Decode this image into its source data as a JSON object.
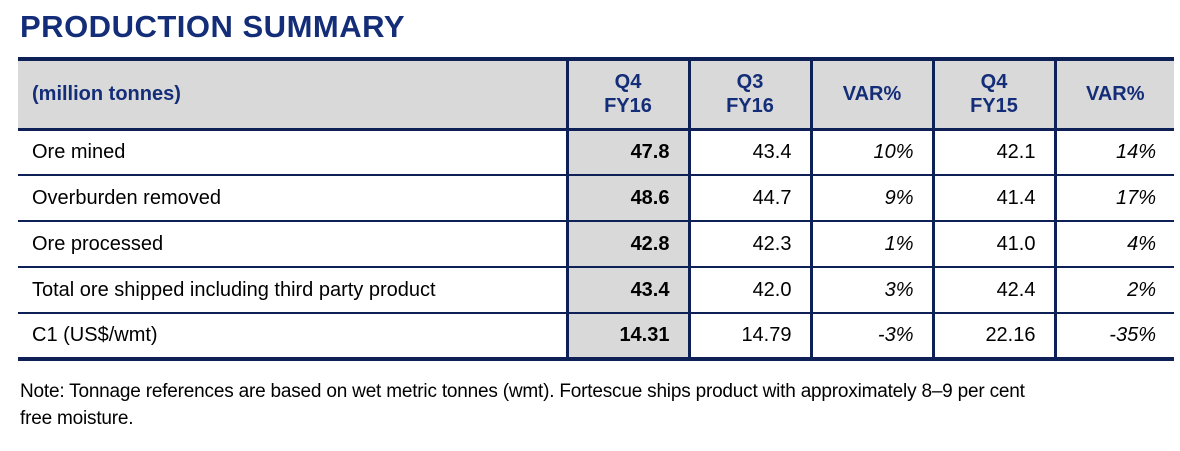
{
  "title": "PRODUCTION SUMMARY",
  "colors": {
    "navy_text": "#142d78",
    "navy_border": "#0e2156",
    "header_bg": "#d9d9d9",
    "highlight_column_bg": "#d9d9d9",
    "body_text": "#000000"
  },
  "table": {
    "header": {
      "unit_label": "(million tonnes)",
      "columns": [
        "Q4\nFY16",
        "Q3\nFY16",
        "VAR%",
        "Q4\nFY15",
        "VAR%"
      ]
    },
    "rows": [
      {
        "label": "Ore mined",
        "q4fy16": "47.8",
        "q3fy16": "43.4",
        "var_vs_q3": "10%",
        "q4fy15": "42.1",
        "var_vs_q4": "14%"
      },
      {
        "label": "Overburden removed",
        "q4fy16": "48.6",
        "q3fy16": "44.7",
        "var_vs_q3": "9%",
        "q4fy15": "41.4",
        "var_vs_q4": "17%"
      },
      {
        "label": "Ore processed",
        "q4fy16": "42.8",
        "q3fy16": "42.3",
        "var_vs_q3": "1%",
        "q4fy15": "41.0",
        "var_vs_q4": "4%"
      },
      {
        "label": "Total ore shipped including third party product",
        "q4fy16": "43.4",
        "q3fy16": "42.0",
        "var_vs_q3": "3%",
        "q4fy15": "42.4",
        "var_vs_q4": "2%"
      },
      {
        "label": "C1 (US$/wmt)",
        "q4fy16": "14.31",
        "q3fy16": "14.79",
        "var_vs_q3": "-3%",
        "q4fy15": "22.16",
        "var_vs_q4": "-35%"
      }
    ]
  },
  "note": {
    "lines": [
      "Note: Tonnage references are based on wet metric tonnes (wmt). Fortescue ships product with approximately 8–9 per cent",
      "free moisture."
    ]
  }
}
